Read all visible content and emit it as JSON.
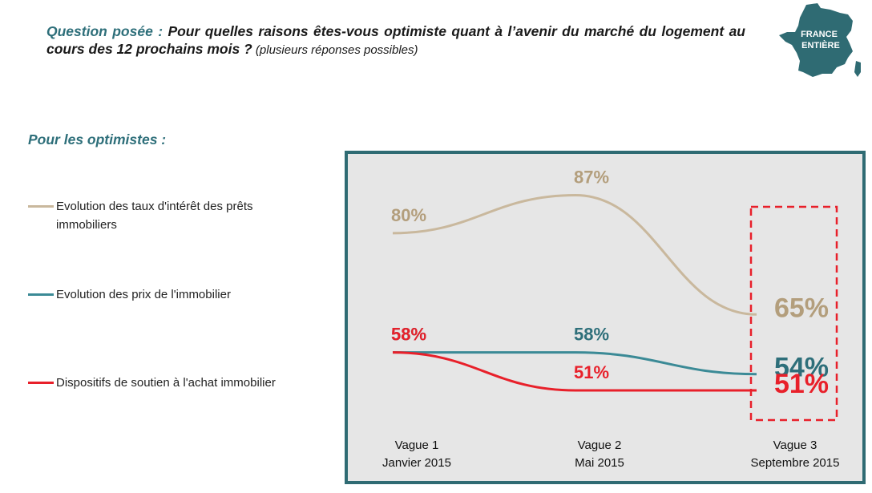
{
  "question": {
    "prefix": "Question posée :",
    "text": " Pour quelles raisons êtes-vous optimiste quant à l’avenir du marché du logement au cours des 12 prochains mois ?",
    "note": " (plusieurs réponses possibles)"
  },
  "badge": {
    "line1": "FRANCE",
    "line2": "ENTIÈRE"
  },
  "subtitle": "Pour les optimistes :",
  "colors": {
    "teal": "#2e6f7a",
    "beige": "#c9b89d",
    "red": "#e8202a",
    "frame": "#2f6b73",
    "plot_bg": "#e6e6e6"
  },
  "chart_data": {
    "type": "line",
    "categories": [
      {
        "line1": "Vague 1",
        "line2": "Janvier 2015"
      },
      {
        "line1": "Vague 2",
        "line2": "Mai 2015"
      },
      {
        "line1": "Vague 3",
        "line2": "Septembre 2015"
      }
    ],
    "series": [
      {
        "name": "Evolution des taux d'intérêt des prêts immobiliers",
        "color": "#c9b89d",
        "label_color": "#b39e7c",
        "values": [
          80,
          87,
          65
        ],
        "labels": [
          "80%",
          "87%",
          "65%"
        ]
      },
      {
        "name": "Evolution des prix de l'immobilier",
        "color": "#3b8a96",
        "label_color": "#2e6f7a",
        "values": [
          58,
          58,
          54
        ],
        "labels": [
          "58%",
          "58%",
          "54%"
        ]
      },
      {
        "name": "Dispositifs de soutien à l'achat immobilier",
        "color": "#e8202a",
        "label_color": "#e8202a",
        "values": [
          58,
          51,
          51
        ],
        "labels": [
          "58%",
          "51%",
          "51%"
        ]
      }
    ],
    "highlight": "Vague 3",
    "grid": false,
    "legend_position": "left"
  }
}
